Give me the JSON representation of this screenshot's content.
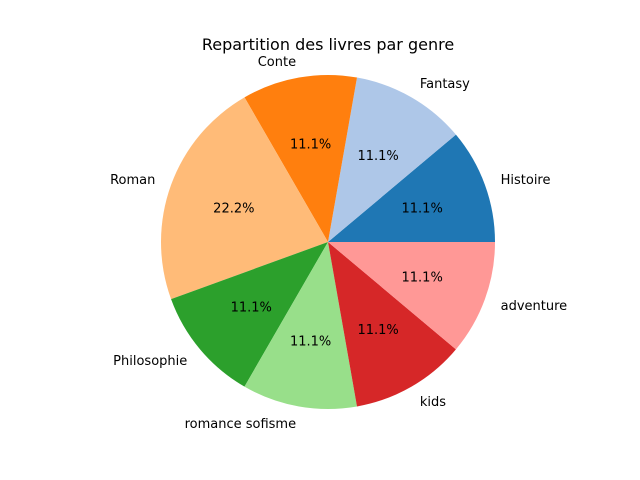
{
  "chart_data": {
    "type": "pie",
    "title": "Repartition des livres par genre",
    "start_angle_deg": 0,
    "direction": "counterclockwise",
    "slices": [
      {
        "label": "Histoire",
        "value": 1,
        "pct_label": "11.1%",
        "color": "#1f77b4"
      },
      {
        "label": "Fantasy",
        "value": 1,
        "pct_label": "11.1%",
        "color": "#aec7e8"
      },
      {
        "label": "Conte",
        "value": 1,
        "pct_label": "11.1%",
        "color": "#ff7f0e"
      },
      {
        "label": "Roman",
        "value": 2,
        "pct_label": "22.2%",
        "color": "#ffbb78"
      },
      {
        "label": "Philosophie",
        "value": 1,
        "pct_label": "11.1%",
        "color": "#2ca02c"
      },
      {
        "label": "romance sofisme",
        "value": 1,
        "pct_label": "11.1%",
        "color": "#98df8a"
      },
      {
        "label": "kids",
        "value": 1,
        "pct_label": "11.1%",
        "color": "#d62728"
      },
      {
        "label": "adventure",
        "value": 1,
        "pct_label": "11.1%",
        "color": "#ff9896"
      }
    ]
  }
}
